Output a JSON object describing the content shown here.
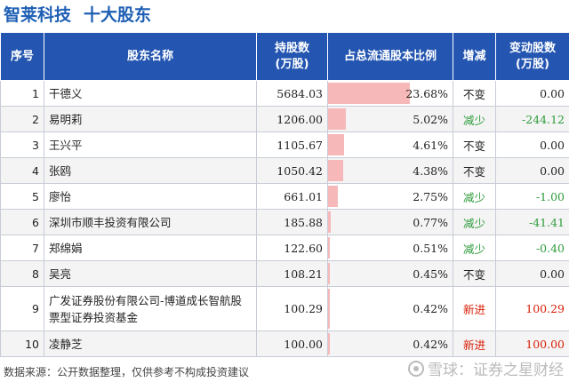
{
  "header": {
    "company": "智莱科技",
    "section": "十大股东"
  },
  "table": {
    "columns": [
      "序号",
      "股东名称",
      "持股数(万股)",
      "占总流通股本比例",
      "增减",
      "变动股数(万股)"
    ],
    "rows": [
      {
        "idx": "1",
        "name": "干德义",
        "shares": "5684.03",
        "ratio": "23.68%",
        "ratio_value": 23.68,
        "change": "不变",
        "change_type": "same",
        "amount": "0.00"
      },
      {
        "idx": "2",
        "name": "易明莉",
        "shares": "1206.00",
        "ratio": "5.02%",
        "ratio_value": 5.02,
        "change": "减少",
        "change_type": "down",
        "amount": "-244.12"
      },
      {
        "idx": "3",
        "name": "王兴平",
        "shares": "1105.67",
        "ratio": "4.61%",
        "ratio_value": 4.61,
        "change": "不变",
        "change_type": "same",
        "amount": "0.00"
      },
      {
        "idx": "4",
        "name": "张鸥",
        "shares": "1050.42",
        "ratio": "4.38%",
        "ratio_value": 4.38,
        "change": "不变",
        "change_type": "same",
        "amount": "0.00"
      },
      {
        "idx": "5",
        "name": "廖怡",
        "shares": "661.01",
        "ratio": "2.75%",
        "ratio_value": 2.75,
        "change": "减少",
        "change_type": "down",
        "amount": "-1.00"
      },
      {
        "idx": "6",
        "name": "深圳市顺丰投资有限公司",
        "shares": "185.88",
        "ratio": "0.77%",
        "ratio_value": 0.77,
        "change": "减少",
        "change_type": "down",
        "amount": "-41.41"
      },
      {
        "idx": "7",
        "name": "郑绵娟",
        "shares": "122.60",
        "ratio": "0.51%",
        "ratio_value": 0.51,
        "change": "减少",
        "change_type": "down",
        "amount": "-0.40"
      },
      {
        "idx": "8",
        "name": "吴亮",
        "shares": "108.21",
        "ratio": "0.45%",
        "ratio_value": 0.45,
        "change": "不变",
        "change_type": "same",
        "amount": "0.00"
      },
      {
        "idx": "9",
        "name": "广发证券股份有限公司-博道成长智航股票型证券投资基金",
        "shares": "100.29",
        "ratio": "0.42%",
        "ratio_value": 0.42,
        "change": "新进",
        "change_type": "new",
        "amount": "100.29"
      },
      {
        "idx": "10",
        "name": "凌静芝",
        "shares": "100.00",
        "ratio": "0.42%",
        "ratio_value": 0.42,
        "change": "新进",
        "change_type": "new",
        "amount": "100.00"
      }
    ]
  },
  "colors": {
    "header_bg": "#2456b1",
    "title": "#1e5fb4",
    "bar": "#f6b8b9",
    "down": "#2e9b3c",
    "new": "#d81e06",
    "same": "#222222"
  },
  "footer": {
    "source": "数据来源：公开数据整理，仅供参考不构成投资建议",
    "brand": "雪球：证券之星财经"
  }
}
